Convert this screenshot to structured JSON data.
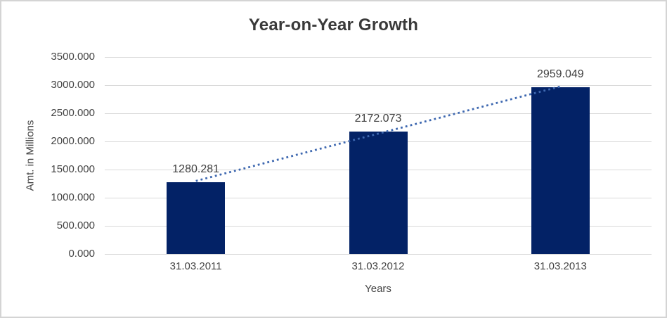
{
  "chart_data": {
    "type": "bar",
    "title": "Year-on-Year Growth",
    "xlabel": "Years",
    "ylabel": "Amt. in Millions",
    "categories": [
      "31.03.2011",
      "31.03.2012",
      "31.03.2013"
    ],
    "values": [
      1280.281,
      2172.073,
      2959.049
    ],
    "data_labels": [
      "1280.281",
      "2172.073",
      "2959.049"
    ],
    "ylim": [
      0,
      3500
    ],
    "y_tick_step": 500,
    "y_tick_labels": [
      "0.000",
      "500.000",
      "1000.000",
      "1500.000",
      "2000.000",
      "2500.000",
      "3000.000",
      "3500.000"
    ],
    "grid": true,
    "legend": "none",
    "trendline": {
      "type": "linear",
      "style": "dotted"
    },
    "colors": {
      "bar": "#032266",
      "trendline": "#3e68b0",
      "gridline": "#d9d9d9",
      "text": "#444444",
      "title": "#3a3a3a",
      "border": "#d4d4d4"
    }
  }
}
